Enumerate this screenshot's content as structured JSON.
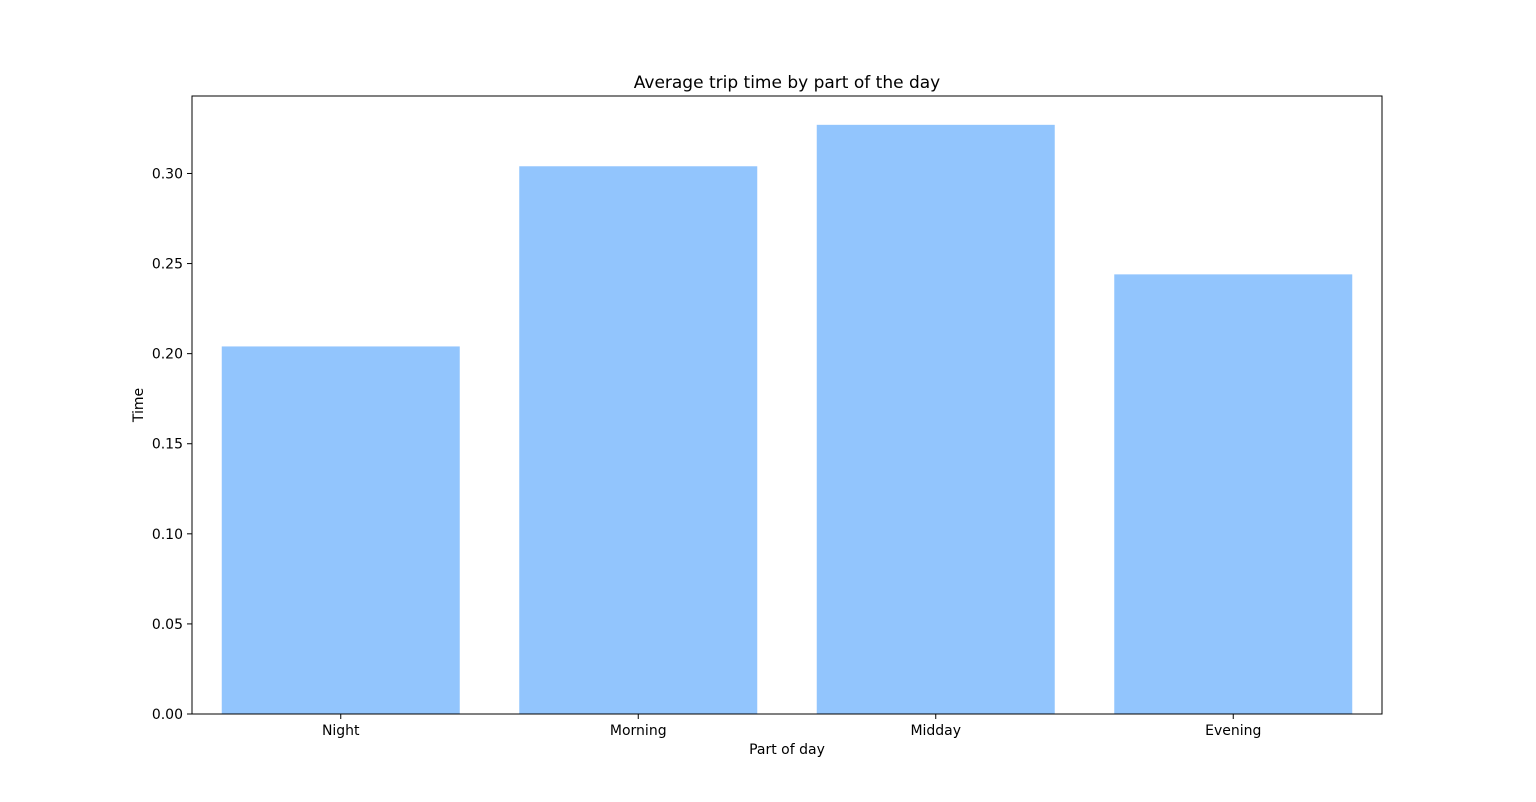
{
  "chart_data": {
    "type": "bar",
    "title": "Average trip time by part of the day",
    "xlabel": "Part of day",
    "ylabel": "Time",
    "categories": [
      "Night",
      "Morning",
      "Midday",
      "Evening"
    ],
    "values": [
      0.204,
      0.304,
      0.327,
      0.244
    ],
    "ylim": [
      0,
      0.343
    ],
    "yticks": [
      "0.00",
      "0.05",
      "0.10",
      "0.15",
      "0.20",
      "0.25",
      "0.30"
    ],
    "bar_color": "#92C5FD",
    "grid": false,
    "legend": "none"
  }
}
